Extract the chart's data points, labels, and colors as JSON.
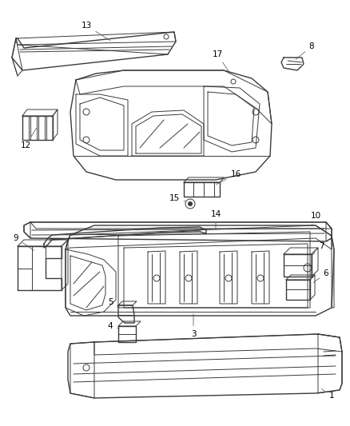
{
  "bg_color": "#ffffff",
  "line_color": "#3a3a3a",
  "label_color": "#000000",
  "fig_width": 4.38,
  "fig_height": 5.33,
  "dpi": 100
}
